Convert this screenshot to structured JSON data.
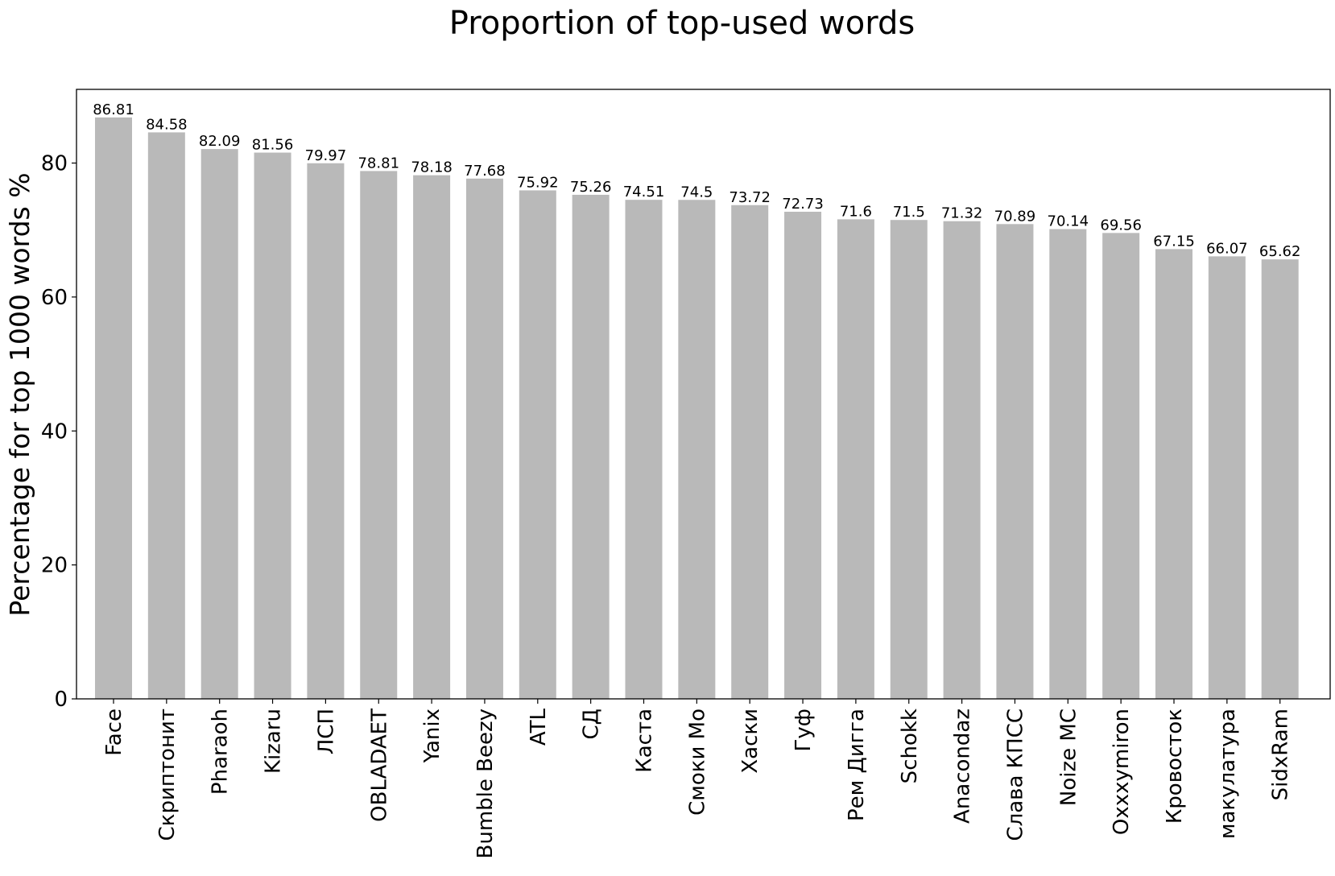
{
  "chart_data": {
    "type": "bar",
    "title": "Proportion of top-used words",
    "xlabel": "",
    "ylabel": "Percentage for top 1000 words %",
    "ylim": [
      0,
      91
    ],
    "yticks": [
      0,
      20,
      40,
      60,
      80
    ],
    "grid": false,
    "legend": "none",
    "bar_color": "#b9b9b9",
    "categories": [
      "Face",
      "Скриптонит",
      "Pharaoh",
      "Kizaru",
      "ЛСП",
      "OBLADAET",
      "Yanix",
      "Bumble Beezy",
      "ATL",
      "СД",
      "Каста",
      "Смоки Мо",
      "Хаски",
      "Гуф",
      "Рем Дигга",
      "Schokk",
      "Anacondaz",
      "Слава КПСС",
      "Noize MC",
      "Oxxxymiron",
      "Кровосток",
      "макулатура",
      "SidxRam"
    ],
    "values": [
      86.81,
      84.58,
      82.09,
      81.56,
      79.97,
      78.81,
      78.18,
      77.68,
      75.92,
      75.26,
      74.51,
      74.5,
      73.72,
      72.73,
      71.6,
      71.5,
      71.32,
      70.89,
      70.14,
      69.56,
      67.15,
      66.07,
      65.62
    ],
    "data_labels": [
      "86.81",
      "84.58",
      "82.09",
      "81.56",
      "79.97",
      "78.81",
      "78.18",
      "77.68",
      "75.92",
      "75.26",
      "74.51",
      "74.5",
      "73.72",
      "72.73",
      "71.6",
      "71.5",
      "71.32",
      "70.89",
      "70.14",
      "69.56",
      "67.15",
      "66.07",
      "65.62"
    ]
  }
}
